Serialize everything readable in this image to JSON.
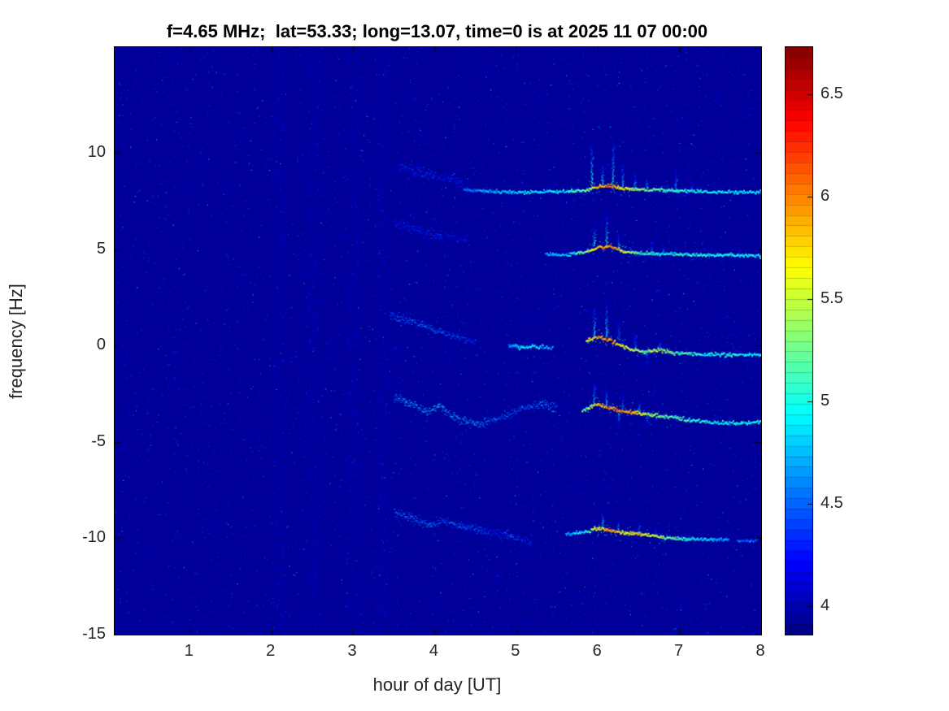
{
  "chart_data": {
    "type": "heatmap",
    "subtype": "doppler-spectrogram",
    "title": "f=4.65 MHz;  lat=53.33; long=13.07, time=0 is at 2025 11 07 00:00",
    "xlabel": "hour of day [UT]",
    "ylabel": "frequency [Hz]",
    "xlim": [
      0.08,
      8
    ],
    "ylim": [
      -15,
      15.5
    ],
    "xticks": [
      1,
      2,
      3,
      4,
      5,
      6,
      7,
      8
    ],
    "yticks": [
      -15,
      -10,
      -5,
      0,
      5,
      10
    ],
    "colormap": "jet",
    "grid": false,
    "colorbar": {
      "range": [
        3.86,
        6.73
      ],
      "ticks": [
        4,
        4.5,
        5,
        5.5,
        6,
        6.5
      ],
      "levels": 56
    },
    "background_value": 3.93,
    "noise_columns": [
      2.1,
      2.5,
      3.0,
      3.35
    ],
    "traces": [
      {
        "name": "band-8hz-predawn-diffuse",
        "style": "diffuse",
        "spread": 0.45,
        "points": [
          [
            3.55,
            9.3,
            4.3
          ],
          [
            3.8,
            9.0,
            4.35
          ],
          [
            4.1,
            8.7,
            4.35
          ],
          [
            4.35,
            8.4,
            4.3
          ]
        ]
      },
      {
        "name": "band-8hz-line",
        "style": "line",
        "spread": 0.12,
        "points": [
          [
            4.35,
            8.15,
            4.55
          ],
          [
            4.7,
            8.05,
            4.7
          ],
          [
            5.1,
            8.0,
            4.85
          ],
          [
            5.5,
            8.05,
            4.9
          ],
          [
            5.85,
            8.1,
            5.2
          ],
          [
            6.0,
            8.3,
            5.9
          ],
          [
            6.15,
            8.35,
            6.0
          ],
          [
            6.3,
            8.2,
            5.7
          ],
          [
            6.5,
            8.15,
            5.3
          ],
          [
            6.8,
            8.1,
            5.1
          ],
          [
            7.2,
            8.05,
            4.95
          ],
          [
            7.6,
            8.0,
            4.9
          ],
          [
            8.0,
            8.0,
            4.85
          ]
        ]
      },
      {
        "name": "band-5hz-predawn-diffuse",
        "style": "diffuse",
        "spread": 0.4,
        "points": [
          [
            3.5,
            6.4,
            4.3
          ],
          [
            3.8,
            6.0,
            4.35
          ],
          [
            4.1,
            5.7,
            4.35
          ],
          [
            4.4,
            5.5,
            4.3
          ]
        ]
      },
      {
        "name": "band-5hz-line",
        "style": "line",
        "spread": 0.12,
        "points": [
          [
            5.35,
            4.8,
            4.6
          ],
          [
            5.6,
            4.75,
            4.8
          ],
          [
            5.85,
            4.9,
            5.3
          ],
          [
            6.0,
            5.15,
            5.9
          ],
          [
            6.15,
            5.2,
            6.0
          ],
          [
            6.3,
            4.95,
            5.6
          ],
          [
            6.5,
            4.85,
            5.1
          ],
          [
            6.8,
            4.8,
            4.95
          ],
          [
            7.2,
            4.75,
            5.0
          ],
          [
            7.6,
            4.75,
            4.95
          ],
          [
            8.0,
            4.7,
            4.9
          ]
        ]
      },
      {
        "name": "band-0hz-predawn-diffuse",
        "style": "diffuse",
        "spread": 0.3,
        "points": [
          [
            3.45,
            1.6,
            4.5
          ],
          [
            3.65,
            1.35,
            4.6
          ],
          [
            3.85,
            1.1,
            4.6
          ],
          [
            4.05,
            0.8,
            4.55
          ],
          [
            4.25,
            0.5,
            4.5
          ],
          [
            4.5,
            0.15,
            4.4
          ]
        ]
      },
      {
        "name": "band-0hz-scatter",
        "style": "line",
        "spread": 0.15,
        "points": [
          [
            4.9,
            0.05,
            4.6
          ],
          [
            5.05,
            -0.05,
            4.95
          ],
          [
            5.2,
            0.0,
            4.85
          ],
          [
            5.45,
            -0.1,
            4.6
          ]
        ]
      },
      {
        "name": "band-0hz-line",
        "style": "line",
        "spread": 0.14,
        "points": [
          [
            5.85,
            0.3,
            5.5
          ],
          [
            6.0,
            0.5,
            6.0
          ],
          [
            6.15,
            0.3,
            5.9
          ],
          [
            6.35,
            -0.1,
            5.6
          ],
          [
            6.55,
            -0.3,
            5.3
          ],
          [
            6.75,
            -0.2,
            5.5
          ],
          [
            6.95,
            -0.35,
            5.2
          ],
          [
            7.3,
            -0.4,
            5.0
          ],
          [
            7.6,
            -0.45,
            5.0
          ],
          [
            8.0,
            -0.4,
            4.95
          ]
        ]
      },
      {
        "name": "band-minus3hz-predawn-diffuse",
        "style": "diffuse",
        "spread": 0.35,
        "points": [
          [
            3.5,
            -2.6,
            4.65
          ],
          [
            3.7,
            -3.0,
            4.75
          ],
          [
            3.9,
            -3.4,
            4.8
          ],
          [
            4.05,
            -3.1,
            4.85
          ],
          [
            4.2,
            -3.6,
            4.8
          ],
          [
            4.35,
            -3.9,
            4.75
          ],
          [
            4.5,
            -4.05,
            4.7
          ],
          [
            4.7,
            -3.85,
            4.6
          ],
          [
            4.9,
            -3.5,
            4.55
          ],
          [
            5.1,
            -3.2,
            4.6
          ],
          [
            5.3,
            -3.0,
            4.65
          ],
          [
            5.5,
            -3.15,
            4.55
          ]
        ]
      },
      {
        "name": "band-minus3hz-line",
        "style": "line",
        "spread": 0.14,
        "points": [
          [
            5.8,
            -3.4,
            5.1
          ],
          [
            5.95,
            -3.0,
            5.7
          ],
          [
            6.1,
            -3.15,
            6.0
          ],
          [
            6.25,
            -3.35,
            6.1
          ],
          [
            6.45,
            -3.45,
            5.8
          ],
          [
            6.65,
            -3.55,
            5.4
          ],
          [
            6.9,
            -3.7,
            5.2
          ],
          [
            7.15,
            -3.85,
            5.0
          ],
          [
            7.4,
            -3.95,
            4.95
          ],
          [
            7.7,
            -4.0,
            4.9
          ],
          [
            8.0,
            -3.9,
            4.95
          ]
        ]
      },
      {
        "name": "band-minus10hz-predawn-diffuse",
        "style": "diffuse",
        "spread": 0.35,
        "points": [
          [
            3.5,
            -8.6,
            4.55
          ],
          [
            3.7,
            -8.9,
            4.65
          ],
          [
            3.9,
            -9.25,
            4.6
          ],
          [
            4.1,
            -9.1,
            4.55
          ],
          [
            4.3,
            -9.3,
            4.55
          ],
          [
            4.55,
            -9.6,
            4.5
          ],
          [
            4.8,
            -9.75,
            4.45
          ],
          [
            5.0,
            -9.9,
            4.45
          ],
          [
            5.2,
            -10.3,
            4.4
          ]
        ]
      },
      {
        "name": "band-minus10hz-line",
        "style": "line",
        "spread": 0.14,
        "points": [
          [
            5.6,
            -9.75,
            4.6
          ],
          [
            5.85,
            -9.6,
            5.0
          ],
          [
            6.0,
            -9.45,
            5.7
          ],
          [
            6.15,
            -9.55,
            5.9
          ],
          [
            6.3,
            -9.65,
            5.6
          ],
          [
            6.5,
            -9.75,
            5.7
          ],
          [
            6.7,
            -9.85,
            5.5
          ],
          [
            6.9,
            -9.95,
            5.2
          ],
          [
            7.1,
            -10.0,
            5.0
          ],
          [
            7.35,
            -10.0,
            4.8
          ],
          [
            7.6,
            -10.05,
            4.6
          ]
        ]
      },
      {
        "name": "band-minus10hz-tail-dash",
        "style": "line",
        "spread": 0.12,
        "points": [
          [
            7.7,
            -10.1,
            4.5
          ],
          [
            7.95,
            -10.05,
            4.5
          ]
        ]
      }
    ],
    "spikes": [
      [
        5.92,
        8.3,
        10.4,
        5.2
      ],
      [
        6.05,
        8.4,
        9.6,
        5.0
      ],
      [
        6.18,
        8.4,
        10.9,
        5.1
      ],
      [
        6.3,
        8.3,
        9.8,
        4.9
      ],
      [
        6.45,
        8.2,
        9.4,
        4.8
      ],
      [
        6.6,
        8.2,
        9.2,
        4.7
      ],
      [
        6.95,
        8.1,
        9.7,
        4.8
      ],
      [
        7.15,
        8.05,
        9.0,
        4.6
      ],
      [
        5.95,
        5.2,
        6.6,
        5.0
      ],
      [
        6.1,
        5.3,
        7.1,
        5.0
      ],
      [
        6.25,
        5.0,
        6.3,
        4.8
      ],
      [
        6.65,
        4.9,
        6.1,
        4.6
      ],
      [
        6.8,
        4.85,
        5.8,
        4.5
      ],
      [
        5.95,
        0.5,
        2.3,
        5.0
      ],
      [
        6.1,
        0.5,
        2.6,
        5.0
      ],
      [
        6.25,
        0.3,
        1.8,
        4.8
      ],
      [
        6.45,
        -0.1,
        1.2,
        4.7
      ],
      [
        6.6,
        -0.3,
        -1.8,
        4.6
      ],
      [
        6.75,
        -0.2,
        1.0,
        4.6
      ],
      [
        5.95,
        -3.0,
        -1.6,
        5.0
      ],
      [
        6.1,
        -3.1,
        -1.9,
        5.0
      ],
      [
        6.3,
        -3.3,
        -2.2,
        4.8
      ],
      [
        6.5,
        -3.4,
        -2.4,
        4.7
      ],
      [
        6.25,
        -3.4,
        -4.6,
        4.8
      ],
      [
        6.6,
        -3.5,
        -4.8,
        4.7
      ],
      [
        6.05,
        -9.4,
        -8.3,
        4.9
      ],
      [
        6.25,
        -9.6,
        -8.6,
        4.8
      ],
      [
        6.5,
        -9.7,
        -8.8,
        4.7
      ],
      [
        6.7,
        -9.8,
        -9.0,
        4.6
      ]
    ]
  }
}
